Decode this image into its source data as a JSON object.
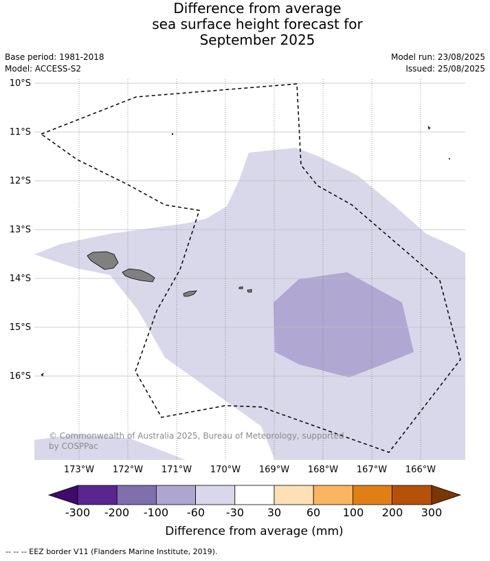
{
  "title": {
    "line1": "Difference from average",
    "line2": "sea surface height forecast for",
    "line3": "September 2025"
  },
  "meta": {
    "base_period": "Base period: 1981-2018",
    "model": "Model: ACCESS-S2",
    "model_run": "Model run: 23/08/2025",
    "issued": "Issued: 25/08/2025"
  },
  "map": {
    "lat_labels": [
      "10°S",
      "11°S",
      "12°S",
      "13°S",
      "14°S",
      "15°S",
      "16°S"
    ],
    "lon_labels": [
      "173°W",
      "172°W",
      "171°W",
      "170°W",
      "169°W",
      "168°W",
      "167°W",
      "166°W"
    ],
    "copyright_line1": "© Commonwealth of Australia 2025, Bureau of Meteorology, supported",
    "copyright_line2": "by COSPPac"
  },
  "colorbar": {
    "title": "Difference from average (mm)",
    "ticks": [
      "-300",
      "-200",
      "-100",
      "-60",
      "-30",
      "30",
      "60",
      "100",
      "200",
      "300"
    ],
    "colors": [
      "#3f0a6b",
      "#5b2590",
      "#7f6fad",
      "#aea6cf",
      "#d9d8ea",
      "#ffffff",
      "#fde0b6",
      "#f9b560",
      "#e17f17",
      "#b55208",
      "#7a3605"
    ]
  },
  "footer": {
    "text": "--  --  -- EEZ border V11 (Flanders Marine Institute, 2019)."
  }
}
